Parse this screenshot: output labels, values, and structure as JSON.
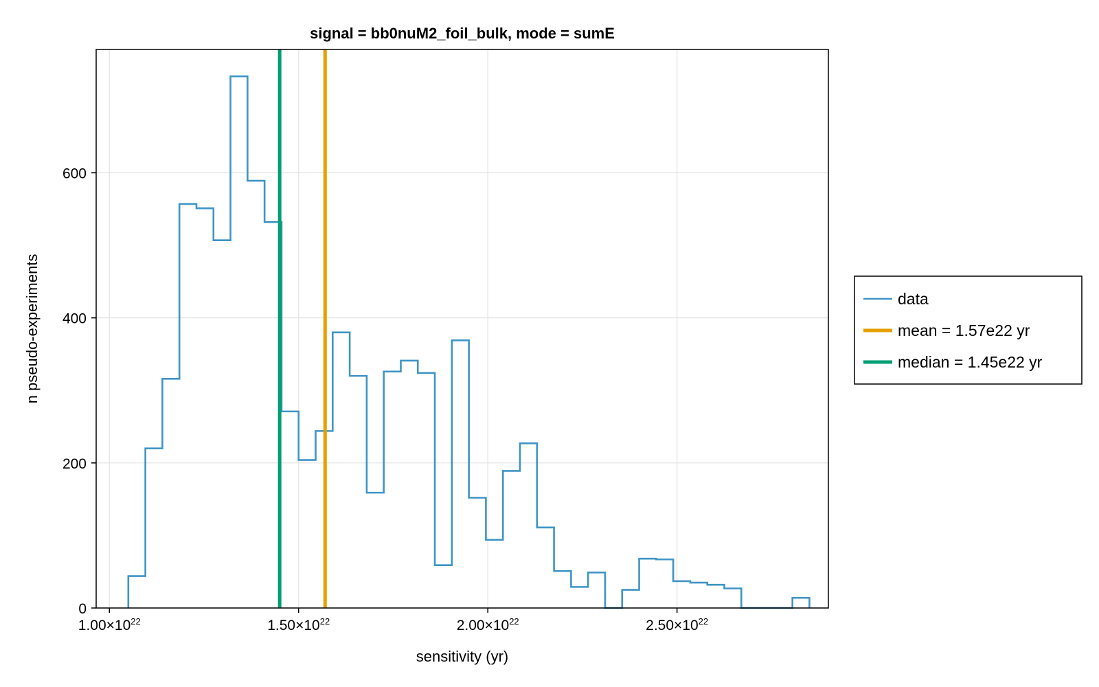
{
  "chart_data": {
    "type": "histogram",
    "title": "signal = bb0nuM2_foil_bulk, mode = sumE",
    "xlabel": "sensitivity (yr)",
    "ylabel": "n pseudo-experiments",
    "xlim": [
      9.65e+21,
      2.9e+22
    ],
    "ylim": [
      0,
      770
    ],
    "grid": true,
    "legend_position": "right-outside",
    "x_ticks": [
      {
        "value": 1e+22,
        "mantissa": "1.00×10",
        "exponent": "22"
      },
      {
        "value": 1.5e+22,
        "mantissa": "1.50×10",
        "exponent": "22"
      },
      {
        "value": 2e+22,
        "mantissa": "2.00×10",
        "exponent": "22"
      },
      {
        "value": 2.5e+22,
        "mantissa": "2.50×10",
        "exponent": "22"
      }
    ],
    "y_ticks": [
      {
        "value": 0,
        "label": "0"
      },
      {
        "value": 200,
        "label": "200"
      },
      {
        "value": 400,
        "label": "400"
      },
      {
        "value": 600,
        "label": "600"
      }
    ],
    "bin_edges": [
      1.05e+22,
      1.095e+22,
      1.14e+22,
      1.185e+22,
      1.23e+22,
      1.275e+22,
      1.32e+22,
      1.365e+22,
      1.41e+22,
      1.455e+22,
      1.5e+22,
      1.545e+22,
      1.59e+22,
      1.635e+22,
      1.68e+22,
      1.725e+22,
      1.77e+22,
      1.815e+22,
      1.86e+22,
      1.905e+22,
      1.95e+22,
      1.995e+22,
      2.04e+22,
      2.085e+22,
      2.13e+22,
      2.175e+22,
      2.22e+22,
      2.265e+22,
      2.31e+22,
      2.355e+22,
      2.4e+22,
      2.445e+22,
      2.49e+22,
      2.535e+22,
      2.58e+22,
      2.625e+22,
      2.67e+22,
      2.715e+22,
      2.76e+22,
      2.805e+22
    ],
    "counts": [
      44,
      220,
      316,
      557,
      551,
      507,
      733,
      589,
      532,
      271,
      204,
      244,
      380,
      320,
      159,
      326,
      341,
      324,
      59,
      369,
      152,
      94,
      189,
      227,
      111,
      51,
      29,
      49,
      0,
      25,
      68,
      67,
      37,
      35,
      32,
      27,
      0,
      0,
      0,
      14
    ],
    "series": [
      {
        "name": "data",
        "color": "#3e94c6",
        "style": "step"
      },
      {
        "name": "mean = 1.57e22 yr",
        "color": "#e69f00",
        "style": "vline",
        "x": 1.57e+22
      },
      {
        "name": "median = 1.45e22 yr",
        "color": "#009e73",
        "style": "vline",
        "x": 1.45e+22
      }
    ]
  }
}
